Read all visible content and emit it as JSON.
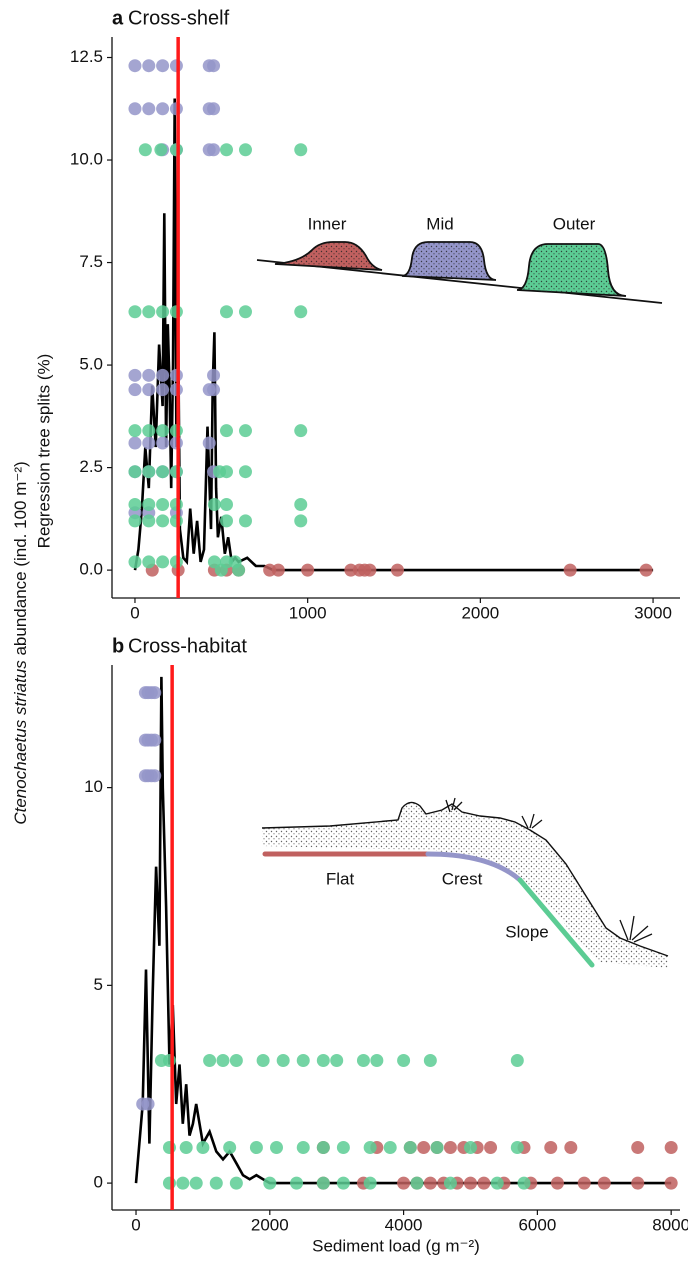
{
  "shared": {
    "y_species": "Ctenochaetus striatus",
    "y_text": " abundance (ind. 100 m⁻²)",
    "y2_text": "Regression tree splits (%)"
  },
  "chart_data": [
    {
      "type": "scatter",
      "panel": "a",
      "title": "Cross-shelf",
      "xlim": [
        -133,
        3156
      ],
      "ylim": [
        -0.68,
        13.0
      ],
      "xticks": [
        0,
        1000,
        2000,
        3000
      ],
      "yticks": [
        {
          "value": 0,
          "label": "0.0"
        },
        2.5,
        {
          "value": 5,
          "label": "5.0"
        },
        7.5,
        {
          "value": 10,
          "label": "10.0"
        },
        12.5
      ],
      "threshold": 250,
      "threshold_color": "#ff1a1a",
      "splits": {
        "color": "#000000",
        "x": [
          0,
          20,
          40,
          60,
          80,
          100,
          120,
          140,
          160,
          170,
          180,
          190,
          200,
          210,
          220,
          230,
          240,
          250,
          260,
          280,
          300,
          320,
          340,
          360,
          380,
          400,
          420,
          440,
          450,
          460,
          470,
          480,
          500,
          520,
          540,
          560,
          580,
          600,
          650,
          700,
          750,
          800,
          3000
        ],
        "values": [
          0,
          0.5,
          1.5,
          3,
          2,
          4.5,
          3,
          5.5,
          4,
          8.7,
          3,
          6,
          4.5,
          2,
          5,
          11.5,
          3,
          6,
          1,
          0.3,
          0.2,
          1.5,
          0.4,
          1.2,
          0.2,
          0.5,
          3.5,
          1,
          4.5,
          5.8,
          2,
          0.8,
          1.3,
          0.4,
          0.8,
          0.2,
          0.3,
          0.2,
          0.3,
          0.1,
          0.1,
          0,
          0
        ]
      },
      "series": [
        {
          "name": "Inner",
          "color": "#c0605f",
          "x": [
            100,
            250,
            460,
            530,
            600,
            780,
            830,
            1000,
            1250,
            1300,
            1330,
            1360,
            1520,
            2520,
            2960
          ],
          "values": [
            0,
            0,
            0,
            0,
            0,
            0,
            0,
            0,
            0,
            0,
            0,
            0,
            0,
            0,
            0
          ]
        },
        {
          "name": "Mid",
          "color": "#9495c9",
          "x": [
            0,
            80,
            160,
            240,
            430,
            455,
            0,
            80,
            160,
            240,
            430,
            455,
            160,
            240,
            430,
            455,
            0,
            80,
            160,
            240,
            455,
            0,
            80,
            160,
            240,
            430,
            455,
            0,
            80,
            160,
            240,
            430,
            0,
            80,
            160,
            240,
            455,
            0,
            80,
            240
          ],
          "values": [
            12.3,
            12.3,
            12.3,
            12.3,
            12.3,
            12.3,
            11.25,
            11.25,
            11.25,
            11.25,
            11.25,
            11.25,
            10.25,
            10.25,
            10.25,
            10.25,
            4.75,
            4.75,
            4.75,
            4.75,
            4.75,
            4.4,
            4.4,
            4.4,
            4.4,
            4.4,
            4.4,
            3.1,
            3.1,
            3.1,
            3.1,
            3.1,
            2.4,
            2.4,
            2.4,
            2.4,
            2.4,
            1.4,
            1.4,
            1.4
          ]
        },
        {
          "name": "Outer",
          "color": "#5ccc94",
          "x": [
            60,
            150,
            240,
            530,
            640,
            960,
            0,
            80,
            160,
            240,
            530,
            640,
            960,
            0,
            80,
            160,
            240,
            530,
            640,
            960,
            0,
            80,
            160,
            240,
            490,
            530,
            640,
            0,
            80,
            160,
            240,
            460,
            530,
            960,
            0,
            80,
            160,
            240,
            530,
            640,
            960,
            0,
            80,
            160,
            240,
            460,
            530,
            580,
            500,
            600
          ],
          "values": [
            10.25,
            10.25,
            10.25,
            10.25,
            10.25,
            10.25,
            6.3,
            6.3,
            6.3,
            6.3,
            6.3,
            6.3,
            6.3,
            3.4,
            3.4,
            3.4,
            3.4,
            3.4,
            3.4,
            3.4,
            2.4,
            2.4,
            2.4,
            2.4,
            2.4,
            2.4,
            2.4,
            1.6,
            1.6,
            1.6,
            1.6,
            1.6,
            1.6,
            1.6,
            1.2,
            1.2,
            1.2,
            1.2,
            1.2,
            1.2,
            1.2,
            0.2,
            0.2,
            0.2,
            0.2,
            0.2,
            0.2,
            0.2,
            0,
            0
          ]
        }
      ]
    },
    {
      "type": "scatter",
      "panel": "b",
      "title": "Cross-habitat",
      "xlabel": "Sediment load (g m⁻²)",
      "xlim": [
        -359,
        8132
      ],
      "ylim": [
        -0.68,
        13.1
      ],
      "xticks": [
        0,
        2000,
        4000,
        6000,
        8000
      ],
      "yticks": [
        0,
        5,
        10
      ],
      "threshold": 540,
      "threshold_color": "#ff1a1a",
      "splits": {
        "color": "#000000",
        "x": [
          0,
          100,
          150,
          200,
          250,
          300,
          350,
          380,
          400,
          450,
          500,
          550,
          600,
          650,
          700,
          750,
          800,
          850,
          900,
          1000,
          1100,
          1200,
          1300,
          1400,
          1500,
          1600,
          1700,
          1800,
          1900,
          2000,
          8000
        ],
        "values": [
          0,
          2,
          5.4,
          1,
          4.8,
          8,
          6,
          12.8,
          10,
          7,
          3,
          4.5,
          2,
          3,
          1.5,
          2.5,
          1.2,
          1.5,
          2,
          1,
          1.3,
          0.8,
          0.6,
          0.8,
          0.5,
          0.2,
          0.1,
          0.2,
          0.1,
          0,
          0
        ]
      },
      "series": [
        {
          "name": "Flat",
          "color": "#c0605f",
          "x": [
            2800,
            3600,
            4100,
            4300,
            4500,
            4700,
            4900,
            5100,
            5300,
            5800,
            6200,
            6500,
            7500,
            8000,
            2800,
            3400,
            4000,
            4200,
            4400,
            4600,
            4800,
            5000,
            5200,
            5500,
            5900,
            6300,
            6700,
            7000,
            7500,
            8000
          ],
          "values": [
            0.9,
            0.9,
            0.9,
            0.9,
            0.9,
            0.9,
            0.9,
            0.9,
            0.9,
            0.9,
            0.9,
            0.9,
            0.9,
            0.9,
            0,
            0,
            0,
            0,
            0,
            0,
            0,
            0,
            0,
            0,
            0,
            0,
            0,
            0,
            0,
            0
          ]
        },
        {
          "name": "Crest",
          "color": "#9495c9",
          "x": [
            140,
            180,
            230,
            280,
            140,
            180,
            230,
            280,
            140,
            180,
            230,
            280,
            100,
            180
          ],
          "values": [
            12.4,
            12.4,
            12.4,
            12.4,
            11.2,
            11.2,
            11.2,
            11.2,
            10.3,
            10.3,
            10.3,
            10.3,
            2.0,
            2.0
          ]
        },
        {
          "name": "Slope",
          "color": "#5ccc94",
          "x": [
            380,
            500,
            1100,
            1300,
            1500,
            1900,
            2200,
            2500,
            2800,
            3000,
            3400,
            3600,
            4000,
            4400,
            5700,
            500,
            750,
            1000,
            1400,
            1800,
            2100,
            2500,
            2800,
            3100,
            3500,
            3800,
            4100,
            4500,
            5000,
            5700,
            500,
            700,
            900,
            1200,
            1500,
            2000,
            2400,
            2800,
            3100,
            3500,
            4200,
            4700,
            5400,
            5800
          ],
          "values": [
            3.1,
            3.1,
            3.1,
            3.1,
            3.1,
            3.1,
            3.1,
            3.1,
            3.1,
            3.1,
            3.1,
            3.1,
            3.1,
            3.1,
            3.1,
            0.9,
            0.9,
            0.9,
            0.9,
            0.9,
            0.9,
            0.9,
            0.9,
            0.9,
            0.9,
            0.9,
            0.9,
            0.9,
            0.9,
            0.9,
            0,
            0,
            0,
            0,
            0,
            0,
            0,
            0,
            0,
            0,
            0,
            0,
            0,
            0
          ]
        }
      ]
    }
  ]
}
